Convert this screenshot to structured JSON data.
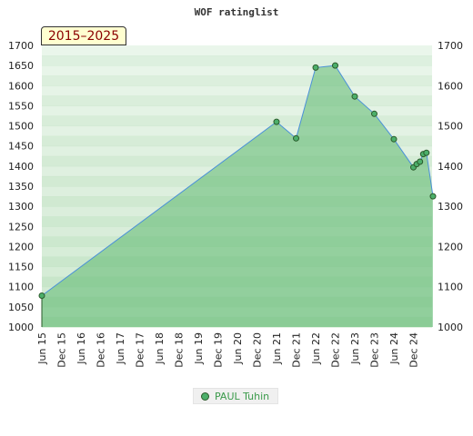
{
  "chart_data": {
    "type": "area",
    "title": "WOF ratinglist",
    "period_label": "2015–2025",
    "ylim": [
      1000,
      1700
    ],
    "y_ticks": [
      1000,
      1050,
      1100,
      1150,
      1200,
      1250,
      1300,
      1350,
      1400,
      1450,
      1500,
      1550,
      1600,
      1650,
      1700
    ],
    "y_ticks_right": [
      1000,
      1100,
      1200,
      1300,
      1400,
      1500,
      1600,
      1700
    ],
    "x_ticks": [
      "Jun 15",
      "Dec 15",
      "Jun 16",
      "Dec 16",
      "Jun 17",
      "Dec 17",
      "Jun 18",
      "Dec 18",
      "Jun 19",
      "Dec 19",
      "Jun 20",
      "Dec 20",
      "Jun 21",
      "Dec 21",
      "Jun 22",
      "Dec 22",
      "Jun 23",
      "Dec 23",
      "Jun 24",
      "Dec 24"
    ],
    "legend_position": "bottom-center",
    "series": [
      {
        "name": "PAUL Tuhin",
        "color": "#4caf6a",
        "points": [
          {
            "x": "2015-06",
            "y": 1078
          },
          {
            "x": "2021-06",
            "y": 1510
          },
          {
            "x": "2021-12",
            "y": 1469
          },
          {
            "x": "2022-06",
            "y": 1645
          },
          {
            "x": "2022-12",
            "y": 1650
          },
          {
            "x": "2023-06",
            "y": 1573
          },
          {
            "x": "2023-12",
            "y": 1530
          },
          {
            "x": "2024-06",
            "y": 1467
          },
          {
            "x": "2024-12",
            "y": 1397
          },
          {
            "x": "2025-01",
            "y": 1405
          },
          {
            "x": "2025-02",
            "y": 1411
          },
          {
            "x": "2025-03",
            "y": 1430
          },
          {
            "x": "2025-04",
            "y": 1433
          },
          {
            "x": "2025-06",
            "y": 1325
          }
        ]
      }
    ],
    "colors": {
      "band_light": "#f4f9f4",
      "band_dark": "#c4e4c6",
      "fill": "#5cb870",
      "line": "#4a90d9",
      "marker": "#4caf6a",
      "marker_stroke": "#2b5a2b"
    }
  }
}
